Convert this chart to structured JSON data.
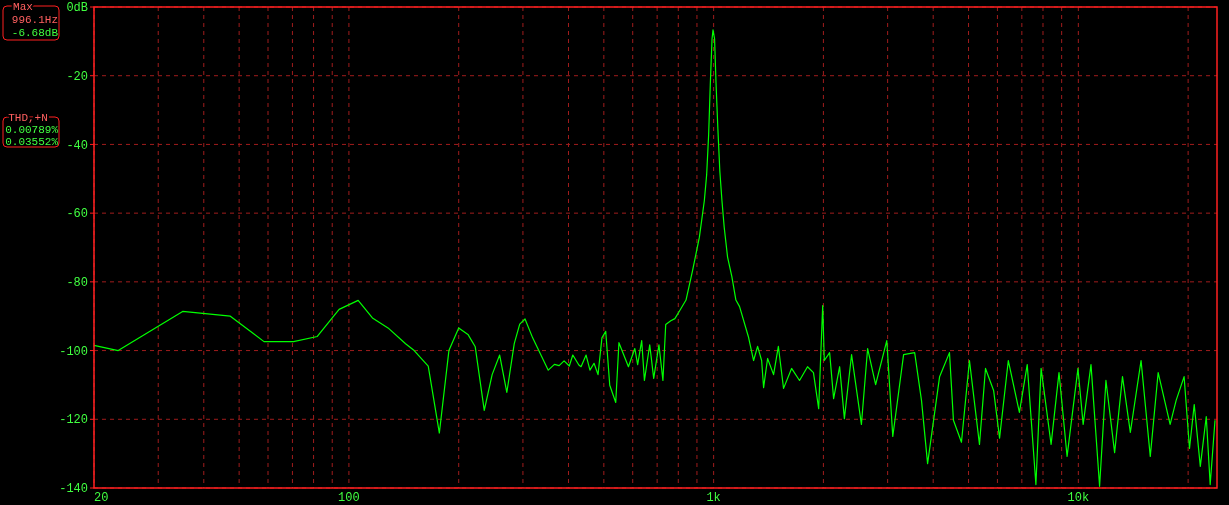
{
  "chart_data": {
    "type": "line",
    "log": "x",
    "grid": true,
    "xlim": [
      20,
      24000
    ],
    "ylim": [
      -140,
      0
    ],
    "xticks": [
      20,
      {
        "value": 30,
        "label": null
      },
      {
        "value": 40,
        "label": null
      },
      {
        "value": 50,
        "label": null
      },
      {
        "value": 60,
        "label": null
      },
      {
        "value": 70,
        "label": null
      },
      {
        "value": 80,
        "label": null
      },
      {
        "value": 90,
        "label": null
      },
      100,
      {
        "value": 200,
        "label": null
      },
      {
        "value": 300,
        "label": null
      },
      {
        "value": 400,
        "label": null
      },
      {
        "value": 500,
        "label": null
      },
      {
        "value": 600,
        "label": null
      },
      {
        "value": 700,
        "label": null
      },
      {
        "value": 800,
        "label": null
      },
      {
        "value": 900,
        "label": null
      },
      {
        "value": 1000,
        "label": "1k"
      },
      {
        "value": 2000,
        "label": null
      },
      {
        "value": 3000,
        "label": null
      },
      {
        "value": 4000,
        "label": null
      },
      {
        "value": 5000,
        "label": null
      },
      {
        "value": 6000,
        "label": null
      },
      {
        "value": 7000,
        "label": null
      },
      {
        "value": 8000,
        "label": null
      },
      {
        "value": 9000,
        "label": null
      },
      {
        "value": 10000,
        "label": "10k"
      },
      {
        "value": 20000,
        "label": null
      }
    ],
    "yticks": [
      {
        "value": 0,
        "label": "0dB"
      },
      -20,
      -40,
      -60,
      -80,
      -100,
      -120,
      -140
    ],
    "annotations": [
      "Max",
      "996.1Hz",
      "-6.68dB",
      "THD,+N",
      "0.00789%",
      "0.03552%"
    ],
    "series": [
      {
        "color": "#00ff00",
        "x": [
          20,
          23.3,
          35,
          47.3,
          58.5,
          70.5,
          81.9,
          94,
          106,
          116,
          128,
          143,
          151,
          165,
          177,
          188,
          200,
          212,
          222,
          235,
          247,
          259,
          271,
          284,
          294,
          304,
          319,
          352,
          366,
          377,
          389,
          402,
          411,
          427,
          433,
          447,
          458,
          470,
          482,
          494,
          506,
          519,
          539,
          550,
          584,
          608,
          619,
          635,
          646,
          668,
          685,
          708,
          726,
          739,
          763,
          783,
          807,
          840,
          876,
          914,
          943,
          957,
          969,
          979,
          990,
          996.1,
          1006,
          1015,
          1027,
          1040,
          1054,
          1069,
          1092,
          1122,
          1151,
          1178,
          1245,
          1287,
          1320,
          1354,
          1371,
          1406,
          1460,
          1505,
          1555,
          1636,
          1720,
          1809,
          1878,
          1941,
          1991,
          2011,
          2080,
          2133,
          2216,
          2283,
          2389,
          2542,
          2644,
          2781,
          2984,
          3099,
          3318,
          3558,
          3715,
          3861,
          4165,
          4433,
          4545,
          4781,
          5029,
          5357,
          5565,
          5857,
          6082,
          6427,
          6893,
          7242,
          7650,
          7905,
          8420,
          8851,
          9314,
          9977,
          10310,
          10832,
          11437,
          11904,
          12575,
          13215,
          13886,
          14859,
          15749,
          16554,
          17852,
          18543,
          19499,
          20176,
          20786,
          21600,
          22426,
          22990,
          23700
        ],
        "values": [
          -98.5,
          -100,
          -88.6,
          -90,
          -97.4,
          -97.4,
          -95.9,
          -88,
          -85.4,
          -90.5,
          -93.4,
          -98,
          -100,
          -104.5,
          -124,
          -100,
          -93.4,
          -95.3,
          -98.9,
          -117.4,
          -107,
          -101.3,
          -112.2,
          -98,
          -92.3,
          -90.8,
          -96.3,
          -105.7,
          -104,
          -104.4,
          -103,
          -104.5,
          -101.3,
          -104.2,
          -104.7,
          -101.3,
          -105.7,
          -103.7,
          -107,
          -96.3,
          -94.4,
          -110.1,
          -115.1,
          -97.7,
          -104.7,
          -99.4,
          -104.1,
          -97.1,
          -108.7,
          -98.3,
          -108.1,
          -98.3,
          -108.7,
          -92.4,
          -91.3,
          -90.7,
          -88.4,
          -85.3,
          -76.6,
          -67,
          -56.4,
          -48.8,
          -37.2,
          -22.8,
          -9.3,
          -6.68,
          -9.3,
          -21.8,
          -35.3,
          -47.8,
          -56.4,
          -64.1,
          -72.8,
          -78.5,
          -85.3,
          -87.2,
          -95.9,
          -102.9,
          -98.8,
          -102.9,
          -110.8,
          -102.3,
          -107,
          -98.8,
          -111,
          -105.2,
          -108.7,
          -104.7,
          -106.4,
          -116.9,
          -86.9,
          -102.9,
          -100.6,
          -114,
          -104.7,
          -119.8,
          -101.2,
          -121.5,
          -99.4,
          -109.9,
          -97.1,
          -125,
          -101.2,
          -100.6,
          -114.5,
          -132.9,
          -107.6,
          -100.6,
          -120.3,
          -126.7,
          -102.9,
          -127.3,
          -105.2,
          -111.6,
          -125.5,
          -102.9,
          -118,
          -104.1,
          -139,
          -105.2,
          -127.3,
          -106.4,
          -130.8,
          -105.2,
          -121.5,
          -104.1,
          -139.5,
          -108.7,
          -129.7,
          -107.6,
          -123.8,
          -102.9,
          -130.8,
          -106.4,
          -121.5,
          -114.5,
          -107.6,
          -128.5,
          -115.7,
          -133.7,
          -119.2,
          -139,
          -120.3
        ]
      }
    ]
  }
}
